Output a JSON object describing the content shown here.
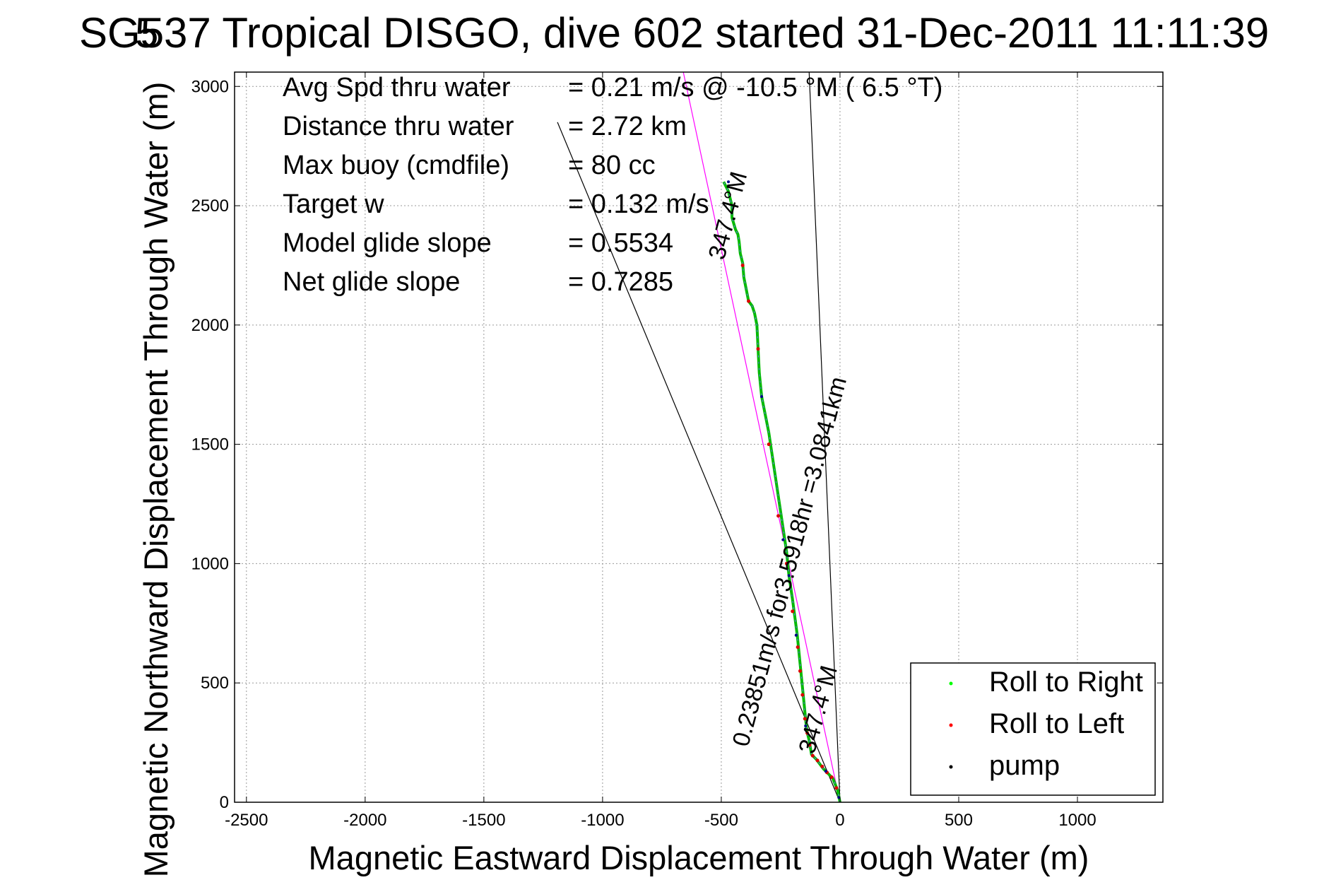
{
  "chart_data": {
    "type": "line",
    "title": "SG537 Tropical DISGO, dive 602 started 31-Dec-2011 11:11:39",
    "title_overlay": "5",
    "xlabel": "Magnetic Eastward Displacement Through Water (m)",
    "ylabel": "Magnetic Northward Displacement Through Water (m)",
    "xlim": [
      -2550,
      1360
    ],
    "ylim": [
      0,
      3060
    ],
    "xticks": [
      -2500,
      -2000,
      -1500,
      -1000,
      -500,
      0,
      500,
      1000
    ],
    "yticks": [
      0,
      500,
      1000,
      1500,
      2000,
      2500,
      3000
    ],
    "grid": true,
    "stats": [
      {
        "label": "Avg Spd thru water",
        "value": "=  0.21 m/s @ -10.5 °M (  6.5 °T)"
      },
      {
        "label": "Distance thru water",
        "value": "=  2.72 km"
      },
      {
        "label": "Max buoy (cmdfile)",
        "value": "= 80 cc"
      },
      {
        "label": "Target w",
        "value": "= 0.132 m/s"
      },
      {
        "label": "Model glide slope",
        "value": "= 0.5534"
      },
      {
        "label": "Net glide slope",
        "value": "= 0.7285"
      }
    ],
    "annotations": [
      {
        "text": "347.4°M",
        "x": -440,
        "y": 2450
      },
      {
        "text": "0.23851m/s for3.5918hr =3.0841km",
        "x": -180,
        "y": 1000
      },
      {
        "text": "347.4°M",
        "x": -60,
        "y": 380
      }
    ],
    "reference_lines": [
      {
        "name": "black-wide-left",
        "color": "#000000",
        "points": [
          [
            0,
            0
          ],
          [
            -1190,
            2850
          ]
        ]
      },
      {
        "name": "black-near-vertical",
        "color": "#000000",
        "points": [
          [
            0,
            0
          ],
          [
            -130,
            3060
          ]
        ]
      },
      {
        "name": "magenta-heading",
        "color": "#ff00ff",
        "points": [
          [
            0,
            0
          ],
          [
            -660,
            3060
          ]
        ]
      }
    ],
    "track_color": "#00bb00",
    "roll_left_color": "#dd0000",
    "pump_color": "#000088",
    "series": [
      {
        "name": "Roll to Right",
        "color": "#00ff00",
        "marker": "dot"
      },
      {
        "name": "Roll to Left",
        "color": "#ff0000",
        "marker": "dot"
      },
      {
        "name": "pump",
        "color": "#000000",
        "marker": "dot"
      }
    ],
    "track": {
      "x": [
        0,
        -10,
        -30,
        -50,
        -70,
        -100,
        -120,
        -130,
        -140,
        -150,
        -160,
        -170,
        -180,
        -200,
        -215,
        -225,
        -240,
        -255,
        -270,
        -285,
        -300,
        -310,
        -320,
        -330,
        -340,
        -345,
        -350,
        -360,
        -370,
        -385,
        -395,
        -405,
        -410,
        -420,
        -425,
        -430,
        -440,
        -455,
        -455,
        -470,
        -480,
        -490
      ],
      "y": [
        0,
        50,
        100,
        120,
        140,
        180,
        200,
        260,
        300,
        400,
        500,
        600,
        700,
        850,
        950,
        1050,
        1150,
        1250,
        1350,
        1450,
        1550,
        1600,
        1650,
        1700,
        1800,
        1900,
        2000,
        2050,
        2080,
        2100,
        2150,
        2200,
        2260,
        2300,
        2350,
        2380,
        2400,
        2450,
        2500,
        2560,
        2580,
        2600
      ]
    },
    "roll_left_points": {
      "x": [
        -15,
        -35,
        -55,
        -75,
        -95,
        -115,
        -128,
        -138,
        -148,
        -158,
        -168,
        -178,
        -200,
        -225,
        -260,
        -300,
        -345,
        -385,
        -410
      ],
      "y": [
        60,
        105,
        125,
        150,
        175,
        195,
        240,
        290,
        350,
        450,
        550,
        650,
        800,
        1000,
        1200,
        1500,
        1900,
        2100,
        2250
      ]
    },
    "pump_points": {
      "x": [
        -5,
        -60,
        -145,
        -185,
        -215,
        -240,
        -330,
        -470
      ],
      "y": [
        20,
        130,
        320,
        700,
        950,
        1100,
        1700,
        2600
      ]
    },
    "legend_position": "bottom-right"
  }
}
